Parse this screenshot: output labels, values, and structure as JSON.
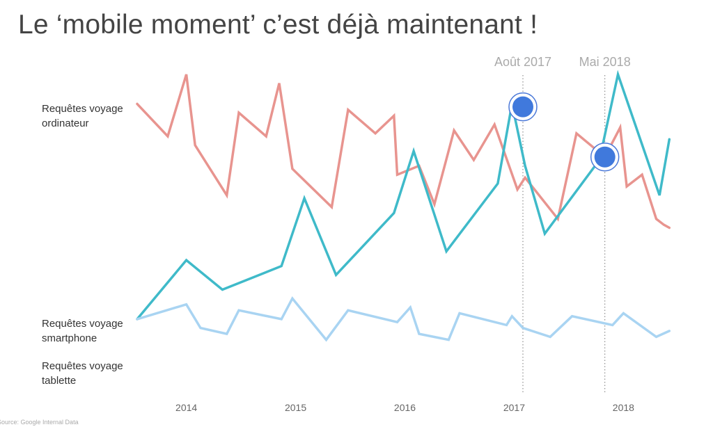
{
  "slide": {
    "title": "Le ‘mobile moment’ c’est déjà maintenant !",
    "source": "Source: Google Internal Data"
  },
  "labels": {
    "desktop": [
      "Requêtes voyage",
      "ordinateur"
    ],
    "smartphone": [
      "Requêtes voyage",
      "smartphone"
    ],
    "tablet": [
      "Requêtes voyage",
      "tablette"
    ]
  },
  "chart_data": {
    "type": "line",
    "title": "Le ‘mobile moment’ c’est déjà maintenant !",
    "xlabel": "",
    "ylabel": "",
    "x_ticks": [
      {
        "label": "2014",
        "x": 2014.0
      },
      {
        "label": "2015",
        "x": 2015.0
      },
      {
        "label": "2016",
        "x": 2016.0
      },
      {
        "label": "2017",
        "x": 2017.0
      },
      {
        "label": "2018",
        "x": 2018.0
      }
    ],
    "xlim": [
      2013.55,
      2018.45
    ],
    "ylim": [
      0,
      100
    ],
    "grid": false,
    "legend": "inline-left",
    "series": [
      {
        "name": "Requêtes voyage ordinateur",
        "color": "#e8948f",
        "points": [
          [
            2013.55,
            90
          ],
          [
            2013.83,
            79
          ],
          [
            2014.0,
            100
          ],
          [
            2014.08,
            76
          ],
          [
            2014.37,
            59
          ],
          [
            2014.48,
            87
          ],
          [
            2014.73,
            79
          ],
          [
            2014.85,
            97
          ],
          [
            2014.97,
            68
          ],
          [
            2015.33,
            55
          ],
          [
            2015.48,
            88
          ],
          [
            2015.73,
            80
          ],
          [
            2015.9,
            86
          ],
          [
            2015.93,
            66
          ],
          [
            2016.13,
            69
          ],
          [
            2016.27,
            56
          ],
          [
            2016.45,
            81
          ],
          [
            2016.63,
            71
          ],
          [
            2016.82,
            83
          ],
          [
            2017.03,
            61
          ],
          [
            2017.1,
            65
          ],
          [
            2017.4,
            51
          ],
          [
            2017.57,
            80
          ],
          [
            2017.83,
            72
          ],
          [
            2017.97,
            82
          ],
          [
            2018.03,
            62
          ],
          [
            2018.17,
            66
          ],
          [
            2018.3,
            51
          ],
          [
            2018.37,
            49
          ],
          [
            2018.42,
            48
          ]
        ]
      },
      {
        "name": "Requêtes voyage smartphone",
        "color": "#3fbac9",
        "points": [
          [
            2013.55,
            17
          ],
          [
            2014.0,
            37
          ],
          [
            2014.33,
            27
          ],
          [
            2014.87,
            35
          ],
          [
            2015.08,
            58
          ],
          [
            2015.37,
            32
          ],
          [
            2015.9,
            53
          ],
          [
            2016.08,
            74
          ],
          [
            2016.38,
            40
          ],
          [
            2016.85,
            63
          ],
          [
            2016.98,
            90
          ],
          [
            2017.1,
            69
          ],
          [
            2017.28,
            46
          ],
          [
            2017.78,
            71
          ],
          [
            2017.95,
            100
          ],
          [
            2018.33,
            59
          ],
          [
            2018.42,
            78
          ]
        ]
      },
      {
        "name": "Requêtes voyage tablette",
        "color": "#a9d4f2",
        "points": [
          [
            2013.55,
            17
          ],
          [
            2014.0,
            22
          ],
          [
            2014.13,
            14
          ],
          [
            2014.37,
            12
          ],
          [
            2014.48,
            20
          ],
          [
            2014.87,
            17
          ],
          [
            2014.97,
            24
          ],
          [
            2015.28,
            10
          ],
          [
            2015.48,
            20
          ],
          [
            2015.93,
            16
          ],
          [
            2016.05,
            21
          ],
          [
            2016.13,
            12
          ],
          [
            2016.4,
            10
          ],
          [
            2016.5,
            19
          ],
          [
            2016.93,
            15
          ],
          [
            2016.98,
            18
          ],
          [
            2017.08,
            14
          ],
          [
            2017.33,
            11
          ],
          [
            2017.53,
            18
          ],
          [
            2017.9,
            15
          ],
          [
            2018.0,
            19
          ],
          [
            2018.3,
            11
          ],
          [
            2018.42,
            13
          ]
        ]
      }
    ],
    "markers": [
      {
        "label": "Août 2017",
        "x": 2017.08,
        "y": 89,
        "series": "smartphone"
      },
      {
        "label": "Mai 2018",
        "x": 2017.83,
        "y": 72,
        "series": "smartphone"
      }
    ]
  }
}
